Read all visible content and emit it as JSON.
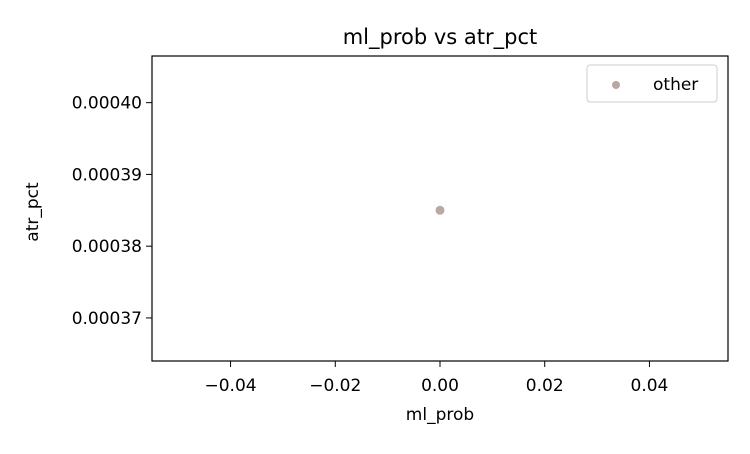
{
  "chart_data": {
    "type": "scatter",
    "title": "ml_prob vs atr_pct",
    "xlabel": "ml_prob",
    "ylabel": "atr_pct",
    "xlim": [
      -0.055,
      0.055
    ],
    "ylim": [
      0.000364,
      0.0004065
    ],
    "x_ticks": [
      -0.04,
      -0.02,
      0.0,
      0.02,
      0.04
    ],
    "x_tick_labels": [
      "−0.04",
      "−0.02",
      "0.00",
      "0.02",
      "0.04"
    ],
    "y_ticks": [
      0.00037,
      0.00038,
      0.00039,
      0.0004
    ],
    "y_tick_labels": [
      "0.00037",
      "0.00038",
      "0.00039",
      "0.00040"
    ],
    "series": [
      {
        "name": "other",
        "color": "#b8a9a4",
        "points": [
          {
            "x": 0.0,
            "y": 0.000385
          }
        ]
      }
    ],
    "legend": {
      "position": "top-right"
    },
    "grid": false
  }
}
